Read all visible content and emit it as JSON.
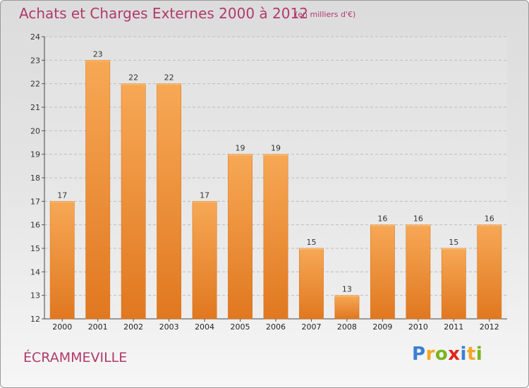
{
  "header": {
    "title": "Achats et Charges Externes 2000 à 2012",
    "subtitle": "(en milliers d'€)"
  },
  "footer": {
    "commune": "ÉCRAMMEVILLE",
    "logo_letters": [
      "P",
      "r",
      "o",
      "x",
      "i",
      "t",
      "i"
    ],
    "logo_colors": [
      "#3a7fd5",
      "#f5a623",
      "#7ab51d",
      "#e2231a",
      "#3a7fd5",
      "#f5a623",
      "#7ab51d"
    ]
  },
  "chart_data": {
    "type": "bar",
    "categories": [
      "2000",
      "2001",
      "2002",
      "2003",
      "2004",
      "2005",
      "2006",
      "2007",
      "2008",
      "2009",
      "2010",
      "2011",
      "2012"
    ],
    "values": [
      17,
      23,
      22,
      22,
      17,
      19,
      19,
      15,
      13,
      16,
      16,
      15,
      16
    ],
    "ylim": [
      12,
      24
    ],
    "yticks": [
      12,
      13,
      14,
      15,
      16,
      17,
      18,
      19,
      20,
      21,
      22,
      23,
      24
    ],
    "grid": "horizontal dashed",
    "bar_color": "#f0903a",
    "bar_color_light": "#f7a855",
    "bar_color_dark": "#e07820",
    "xlabel": "",
    "ylabel": ""
  }
}
